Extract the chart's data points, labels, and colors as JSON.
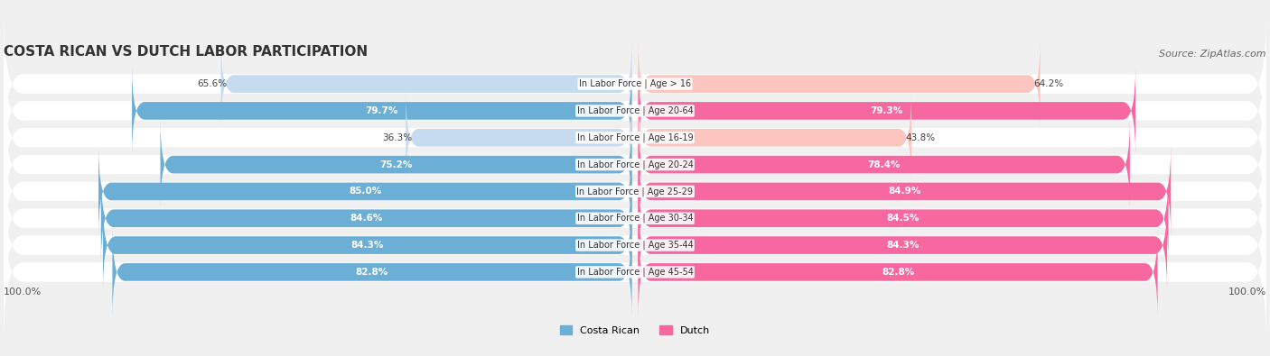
{
  "title": "COSTA RICAN VS DUTCH LABOR PARTICIPATION",
  "source": "Source: ZipAtlas.com",
  "categories": [
    "In Labor Force | Age > 16",
    "In Labor Force | Age 20-64",
    "In Labor Force | Age 16-19",
    "In Labor Force | Age 20-24",
    "In Labor Force | Age 25-29",
    "In Labor Force | Age 30-34",
    "In Labor Force | Age 35-44",
    "In Labor Force | Age 45-54"
  ],
  "costa_rican": [
    65.6,
    79.7,
    36.3,
    75.2,
    85.0,
    84.6,
    84.3,
    82.8
  ],
  "dutch": [
    64.2,
    79.3,
    43.8,
    78.4,
    84.9,
    84.5,
    84.3,
    82.8
  ],
  "costa_rican_color_strong": "#6baed6",
  "costa_rican_color_light": "#c6dbef",
  "dutch_color_strong": "#f768a1",
  "dutch_color_light": "#fcc5c0",
  "bg_color": "#f0f0f0",
  "bar_bg_color": "#ffffff",
  "label_color_dark": "#555555",
  "threshold_strong": 70.0,
  "bar_height": 0.7,
  "max_val": 100.0,
  "legend_cr_color": "#6baed6",
  "legend_dutch_color": "#f768a1"
}
